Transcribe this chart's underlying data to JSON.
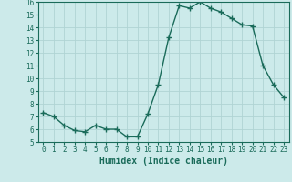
{
  "x": [
    0,
    1,
    2,
    3,
    4,
    5,
    6,
    7,
    8,
    9,
    10,
    11,
    12,
    13,
    14,
    15,
    16,
    17,
    18,
    19,
    20,
    21,
    22,
    23
  ],
  "y": [
    7.3,
    7.0,
    6.3,
    5.9,
    5.8,
    6.3,
    6.0,
    6.0,
    5.4,
    5.4,
    7.2,
    9.5,
    13.2,
    15.7,
    15.5,
    16.0,
    15.5,
    15.2,
    14.7,
    14.2,
    14.1,
    11.0,
    9.5,
    8.5
  ],
  "line_color": "#1a6b5a",
  "marker": "+",
  "markersize": 4,
  "linewidth": 1.0,
  "xlabel": "Humidex (Indice chaleur)",
  "xlabel_fontsize": 7,
  "bg_color": "#cceaea",
  "grid_color": "#b0d4d4",
  "ylim": [
    5,
    16
  ],
  "yticks": [
    5,
    6,
    7,
    8,
    9,
    10,
    11,
    12,
    13,
    14,
    15,
    16
  ],
  "xticks": [
    0,
    1,
    2,
    3,
    4,
    5,
    6,
    7,
    8,
    9,
    10,
    11,
    12,
    13,
    14,
    15,
    16,
    17,
    18,
    19,
    20,
    21,
    22,
    23
  ],
  "tick_fontsize": 5.5,
  "tick_color": "#1a6b5a"
}
